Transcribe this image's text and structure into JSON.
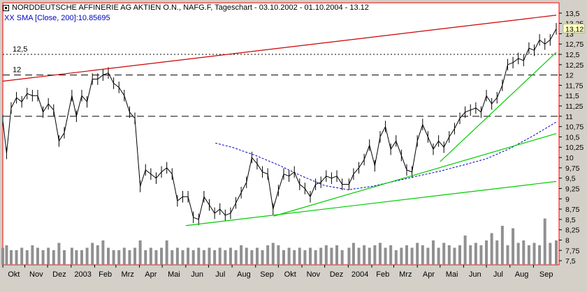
{
  "header": {
    "title": "NORDDEUTSCHE AFFINERIE AG AKTIEN O.N., NAFG.F, Tageschart - 03.10.2002 - 01.10.2004 - 13.12",
    "sma_label": "XX SMA [Close, 200]:10.85695"
  },
  "colors": {
    "background": "#ffffff",
    "frame": "#ff0000",
    "price": "#000000",
    "resistance_line": "#cc0000",
    "support_line": "#00cc00",
    "sma": "#0000c0",
    "volume": "#909090"
  },
  "chart_data": {
    "type": "line",
    "chart_style": "bar (OHLC) with volume",
    "grid": false,
    "ylim": [
      7.4,
      13.75
    ],
    "y_ticks": [
      "7,5",
      "7,75",
      "8",
      "8,25",
      "8,5",
      "8,75",
      "9",
      "9,25",
      "9,5",
      "9,75",
      "10",
      "10,25",
      "10,5",
      "10,75",
      "11",
      "11,25",
      "11,5",
      "11,75",
      "12",
      "12,25",
      "12,5",
      "12,75",
      "13",
      "13,25",
      "13,5"
    ],
    "x_ticks": [
      "Okt",
      "Nov",
      "Dez",
      "2003",
      "Feb",
      "Mrz",
      "Apr",
      "Mai",
      "Jun",
      "Jul",
      "Aug",
      "Sep",
      "Okt",
      "Nov",
      "Dez",
      "2004",
      "Feb",
      "Mrz",
      "Apr",
      "Mai",
      "Jun",
      "Jul",
      "Aug",
      "Sep"
    ],
    "last_price_label": "13,12",
    "last_price": 13.12,
    "horizontal_levels": [
      {
        "value": 12.5,
        "label": "12,5",
        "style": "dotted"
      },
      {
        "value": 12.0,
        "label": "12",
        "style": "dashed"
      },
      {
        "value": 11.0,
        "label": "",
        "style": "dashed"
      }
    ],
    "trendlines": [
      {
        "name": "",
        "color": "resistance",
        "from": {
          "x": "2002-10-03",
          "y": 11.85
        },
        "to": {
          "x": "2004-10-01",
          "y": 13.45
        }
      },
      {
        "name": "",
        "color": "support",
        "from": {
          "x": "2003-06-01",
          "y": 8.35
        },
        "to": {
          "x": "2004-10-01",
          "y": 9.42
        }
      },
      {
        "name": "",
        "color": "support",
        "from": {
          "x": "2003-09-25",
          "y": 8.58
        },
        "to": {
          "x": "2004-10-01",
          "y": 10.58
        }
      },
      {
        "name": "",
        "color": "support",
        "from": {
          "x": "2004-05-01",
          "y": 9.9
        },
        "to": {
          "x": "2004-10-01",
          "y": 12.55
        }
      }
    ],
    "series": [
      {
        "name": "NORDDEUTSCHE AFFINERIE AG AKTIEN O.N.",
        "x": [
          "2002-10-03",
          "2002-10-08",
          "2002-10-14",
          "2002-10-21",
          "2002-10-28",
          "2002-11-04",
          "2002-11-11",
          "2002-11-18",
          "2002-11-25",
          "2002-12-02",
          "2002-12-09",
          "2002-12-16",
          "2002-12-23",
          "2003-01-02",
          "2003-01-08",
          "2003-01-15",
          "2003-01-22",
          "2003-01-29",
          "2003-02-05",
          "2003-02-12",
          "2003-02-19",
          "2003-02-26",
          "2003-03-05",
          "2003-03-12",
          "2003-03-19",
          "2003-03-26",
          "2003-04-02",
          "2003-04-09",
          "2003-04-16",
          "2003-04-23",
          "2003-04-30",
          "2003-05-07",
          "2003-05-14",
          "2003-05-21",
          "2003-05-28",
          "2003-06-04",
          "2003-06-11",
          "2003-06-18",
          "2003-06-25",
          "2003-07-02",
          "2003-07-09",
          "2003-07-16",
          "2003-07-23",
          "2003-07-30",
          "2003-08-06",
          "2003-08-13",
          "2003-08-20",
          "2003-08-27",
          "2003-09-03",
          "2003-09-10",
          "2003-09-17",
          "2003-09-24",
          "2003-10-01",
          "2003-10-08",
          "2003-10-15",
          "2003-10-22",
          "2003-10-29",
          "2003-11-05",
          "2003-11-12",
          "2003-11-19",
          "2003-11-26",
          "2003-12-03",
          "2003-12-10",
          "2003-12-17",
          "2003-12-24",
          "2004-01-02",
          "2004-01-08",
          "2004-01-15",
          "2004-01-22",
          "2004-01-29",
          "2004-02-05",
          "2004-02-12",
          "2004-02-19",
          "2004-02-26",
          "2004-03-04",
          "2004-03-11",
          "2004-03-18",
          "2004-03-25",
          "2004-04-01",
          "2004-04-08",
          "2004-04-15",
          "2004-04-22",
          "2004-04-29",
          "2004-05-06",
          "2004-05-13",
          "2004-05-20",
          "2004-05-27",
          "2004-06-03",
          "2004-06-10",
          "2004-06-17",
          "2004-06-24",
          "2004-07-01",
          "2004-07-08",
          "2004-07-15",
          "2004-07-22",
          "2004-07-29",
          "2004-08-05",
          "2004-08-12",
          "2004-08-19",
          "2004-08-26",
          "2004-09-02",
          "2004-09-09",
          "2004-09-16",
          "2004-09-23",
          "2004-10-01"
        ],
        "values": [
          10.9,
          10.1,
          11.2,
          11.45,
          11.35,
          11.55,
          11.5,
          11.5,
          11.1,
          11.3,
          11.15,
          10.4,
          10.6,
          11.5,
          11.0,
          11.5,
          11.35,
          11.9,
          11.9,
          12.0,
          12.05,
          11.8,
          11.7,
          11.5,
          11.1,
          10.95,
          9.3,
          9.7,
          9.6,
          9.5,
          9.65,
          9.75,
          9.6,
          8.95,
          9.05,
          9.05,
          8.55,
          8.5,
          9.05,
          8.85,
          8.65,
          8.75,
          8.6,
          8.65,
          8.9,
          9.15,
          9.4,
          10.0,
          9.85,
          9.65,
          9.6,
          8.75,
          9.2,
          9.6,
          9.55,
          9.65,
          9.35,
          9.25,
          9.05,
          9.35,
          9.4,
          9.55,
          9.5,
          9.55,
          9.35,
          9.35,
          9.6,
          9.75,
          9.95,
          10.3,
          9.8,
          10.5,
          10.75,
          10.2,
          10.4,
          10.05,
          9.7,
          9.65,
          10.4,
          10.8,
          10.5,
          10.2,
          10.4,
          10.25,
          10.5,
          10.7,
          10.95,
          11.1,
          11.15,
          11.2,
          11.1,
          11.5,
          11.3,
          11.45,
          11.75,
          12.25,
          12.3,
          12.4,
          12.35,
          12.65,
          12.6,
          12.85,
          12.75,
          12.85,
          13.12
        ]
      },
      {
        "name": "XX SMA [Close, 200]",
        "x": [
          "2003-07-10",
          "2003-08-01",
          "2003-09-01",
          "2003-10-01",
          "2003-11-01",
          "2003-12-01",
          "2004-01-01",
          "2004-02-01",
          "2004-03-01",
          "2004-04-01",
          "2004-05-01",
          "2004-06-01",
          "2004-07-01",
          "2004-08-01",
          "2004-09-01",
          "2004-10-01"
        ],
        "values": [
          10.35,
          10.25,
          10.05,
          9.82,
          9.55,
          9.32,
          9.22,
          9.3,
          9.42,
          9.55,
          9.67,
          9.82,
          9.97,
          10.22,
          10.53,
          10.86
        ]
      }
    ],
    "volume": {
      "name": "",
      "bar_level_fraction": [
        0.35,
        0.4,
        0.3,
        0.3,
        0.35,
        0.3,
        0.4,
        0.35,
        0.3,
        0.35,
        0.3,
        0.45,
        0.3,
        0.35,
        0.3,
        0.3,
        0.35,
        0.45,
        0.4,
        0.5,
        0.35,
        0.3,
        0.3,
        0.35,
        0.3,
        0.35,
        0.5,
        0.3,
        0.35,
        0.3,
        0.35,
        0.5,
        0.3,
        0.35,
        0.3,
        0.35,
        0.3,
        0.35,
        0.3,
        0.35,
        0.3,
        0.35,
        0.3,
        0.35,
        0.3,
        0.4,
        0.35,
        0.3,
        0.35,
        0.3,
        0.4,
        0.45,
        0.4,
        0.3,
        0.35,
        0.3,
        0.35,
        0.3,
        0.35,
        0.3,
        0.35,
        0.4,
        0.35,
        0.4,
        0.3,
        0.35,
        0.45,
        0.35,
        0.4,
        0.35,
        0.4,
        0.45,
        0.35,
        0.4,
        0.3,
        0.35,
        0.4,
        0.35,
        0.45,
        0.4,
        0.35,
        0.5,
        0.35,
        0.45,
        0.4,
        0.35,
        0.4,
        0.6,
        0.4,
        0.45,
        0.4,
        0.5,
        0.65,
        0.5,
        0.8,
        0.4,
        0.75,
        0.45,
        0.5,
        0.4,
        0.45,
        0.4,
        0.95,
        0.45,
        0.5
      ]
    }
  }
}
